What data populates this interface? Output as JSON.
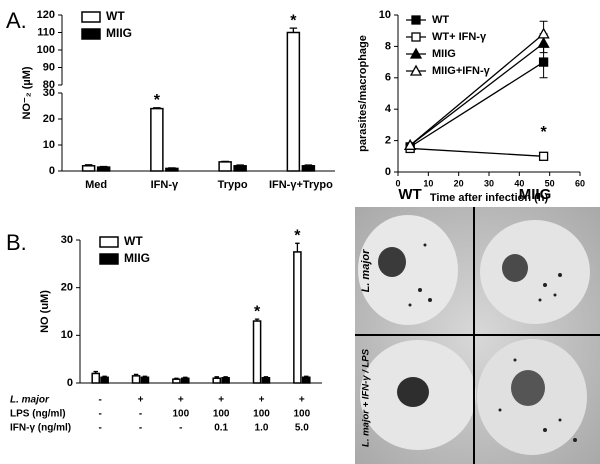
{
  "panel_labels": [
    "A.",
    "B."
  ],
  "micrographs": {
    "columns": [
      "WT",
      "MIIG"
    ],
    "rows": [
      "L. major",
      "L. major + IFN-γ / LPS"
    ]
  },
  "chart_data": [
    {
      "type": "bar",
      "ylabel": "NO⁻₂ (µM)",
      "categories": [
        "Med",
        "IFN-γ",
        "Trypo",
        "IFN-γ+Trypo"
      ],
      "series": [
        {
          "name": "WT",
          "color": "#ffffff",
          "values": [
            2,
            24,
            3.5,
            110
          ],
          "errors": [
            0.4,
            0.3,
            0.2,
            2.5
          ],
          "significance": [
            null,
            "*",
            null,
            "*"
          ]
        },
        {
          "name": "MIIG",
          "color": "#000000",
          "values": [
            1.5,
            1,
            2,
            2
          ],
          "errors": [
            0.2,
            0.2,
            0.3,
            0.3
          ]
        }
      ],
      "ylim": [
        0,
        120
      ],
      "ybreak": [
        30,
        80
      ],
      "yticks": [
        0,
        10,
        20,
        30,
        80,
        90,
        100,
        110,
        120
      ],
      "legend": "upper left"
    },
    {
      "type": "line",
      "xlabel": "Time after infection (h)",
      "ylabel": "parasites/macrophage",
      "x": [
        4,
        48
      ],
      "series": [
        {
          "name": "WT",
          "color": "#000000",
          "marker": "square",
          "filled": true,
          "values": [
            1.6,
            7.0
          ],
          "errors": [
            0.2,
            1.0
          ]
        },
        {
          "name": "WT+ IFN-γ",
          "color": "#000000",
          "marker": "square",
          "filled": false,
          "values": [
            1.5,
            1.0
          ],
          "errors": [
            0.1,
            0.1
          ],
          "significance": [
            null,
            "*"
          ]
        },
        {
          "name": "MIIG",
          "color": "#000000",
          "marker": "triangle",
          "filled": true,
          "values": [
            1.7,
            8.2
          ],
          "errors": [
            0.1,
            0.6
          ]
        },
        {
          "name": "MIIG+IFN-γ",
          "color": "#000000",
          "marker": "triangle",
          "filled": false,
          "values": [
            1.7,
            8.8
          ],
          "errors": [
            0.1,
            0.8
          ]
        }
      ],
      "xlim": [
        0,
        60
      ],
      "xticks": [
        0,
        10,
        20,
        30,
        40,
        50,
        60
      ],
      "ylim": [
        0,
        10
      ],
      "yticks": [
        0,
        2,
        4,
        6,
        8,
        10
      ],
      "legend": "upper left"
    },
    {
      "type": "bar",
      "ylabel": "NO (uM)",
      "categories": [
        null,
        null,
        null,
        null,
        null,
        null
      ],
      "series": [
        {
          "name": "WT",
          "color": "#ffffff",
          "values": [
            2,
            1.5,
            0.8,
            1.0,
            13,
            27.5
          ],
          "errors": [
            0.4,
            0.3,
            0.2,
            0.3,
            0.4,
            1.8
          ],
          "significance": [
            null,
            null,
            null,
            null,
            "*",
            "*"
          ]
        },
        {
          "name": "MIIG",
          "color": "#000000",
          "values": [
            1.2,
            1.2,
            1.0,
            1.1,
            1.1,
            1.2
          ],
          "errors": [
            0.2,
            0.2,
            0.2,
            0.2,
            0.2,
            0.2
          ]
        }
      ],
      "ylim": [
        0,
        30
      ],
      "yticks": [
        0,
        10,
        20,
        30
      ],
      "legend": "upper left",
      "conditions": [
        {
          "label": "L. major",
          "values": [
            "-",
            "+",
            "+",
            "+",
            "+",
            "+"
          ]
        },
        {
          "label": "LPS (ng/ml)",
          "values": [
            "-",
            "-",
            "100",
            "100",
            "100",
            "100"
          ]
        },
        {
          "label": "IFN-γ (ng/ml)",
          "values": [
            "-",
            "-",
            "-",
            "0.1",
            "1.0",
            "5.0"
          ]
        }
      ]
    }
  ]
}
